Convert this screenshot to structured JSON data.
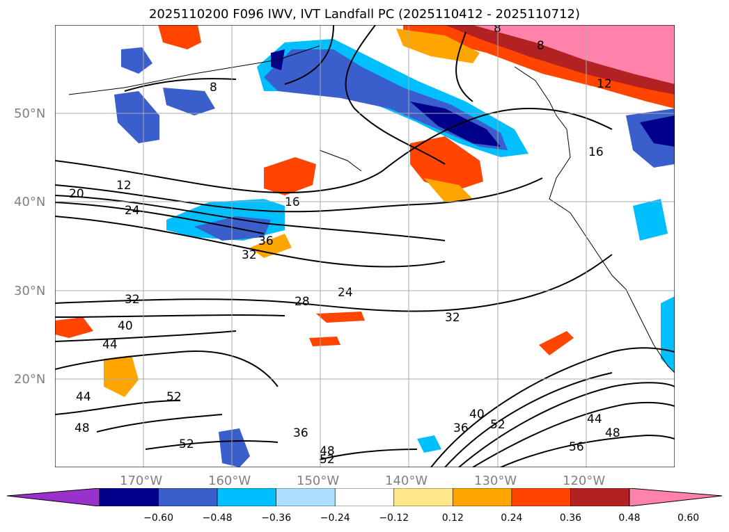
{
  "title": "2025110200 F096 IWV, IVT Landfall PC (2025110412 - 2025110712)",
  "map": {
    "lat_labels": [
      "50°N",
      "40°N",
      "30°N",
      "20°N"
    ],
    "lon_labels": [
      "170°W",
      "160°W",
      "150°W",
      "140°W",
      "130°W",
      "120°W"
    ],
    "contour_labels": [
      "8",
      "8",
      "8",
      "12",
      "12",
      "16",
      "20",
      "24",
      "16",
      "36",
      "32",
      "24",
      "28",
      "32",
      "32",
      "40",
      "44",
      "44",
      "48",
      "52",
      "52",
      "36",
      "48",
      "52",
      "36",
      "40",
      "52",
      "44",
      "48",
      "56"
    ],
    "coastline_color": "#000000",
    "contour_color": "#000000",
    "grid": true
  },
  "colorbar": {
    "ticks": [
      "−0.60",
      "−0.48",
      "−0.36",
      "−0.24",
      "−0.12",
      "0.12",
      "0.24",
      "0.36",
      "0.48",
      "0.60"
    ],
    "colors": [
      "#9932CC",
      "#00008B",
      "#3A5FCD",
      "#00BFFF",
      "#ADDFFF",
      "#FFFFFF",
      "#FFE78C",
      "#FFA500",
      "#FF4500",
      "#B22222",
      "#FF82AB"
    ]
  }
}
